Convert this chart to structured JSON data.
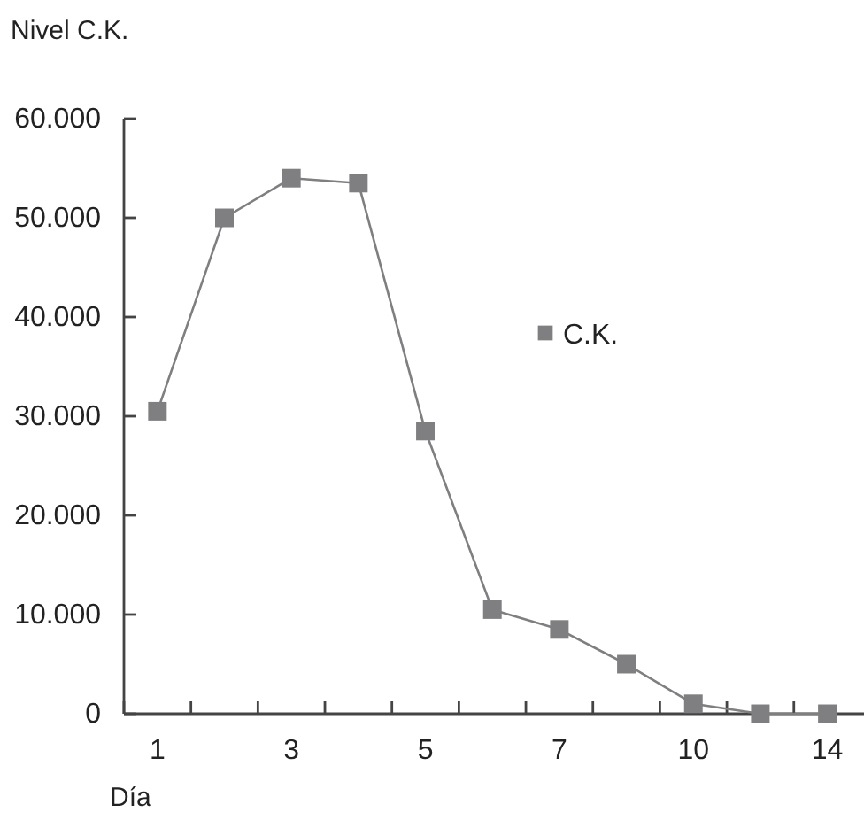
{
  "chart_data": {
    "type": "line",
    "ylabel": "Nivel C.K.",
    "xlabel": "Día",
    "categories": [
      "1",
      null,
      "3",
      null,
      "5",
      null,
      "7",
      null,
      "10",
      null,
      "14"
    ],
    "series": [
      {
        "name": "C.K.",
        "color": "#7f7f81",
        "values": [
          30500,
          50000,
          54000,
          53500,
          28500,
          10500,
          8500,
          5000,
          1000,
          0,
          0
        ]
      }
    ],
    "ylim": [
      0,
      60000
    ],
    "yticks": [
      {
        "value": 0,
        "label": "0"
      },
      {
        "value": 10000,
        "label": "10.000"
      },
      {
        "value": 20000,
        "label": "20.000"
      },
      {
        "value": 30000,
        "label": "30.000"
      },
      {
        "value": 40000,
        "label": "40.000"
      },
      {
        "value": 50000,
        "label": "50.000"
      },
      {
        "value": 60000,
        "label": "60.000"
      }
    ],
    "grid": false,
    "legend": "center",
    "marker": "square",
    "line_style": "solid"
  }
}
